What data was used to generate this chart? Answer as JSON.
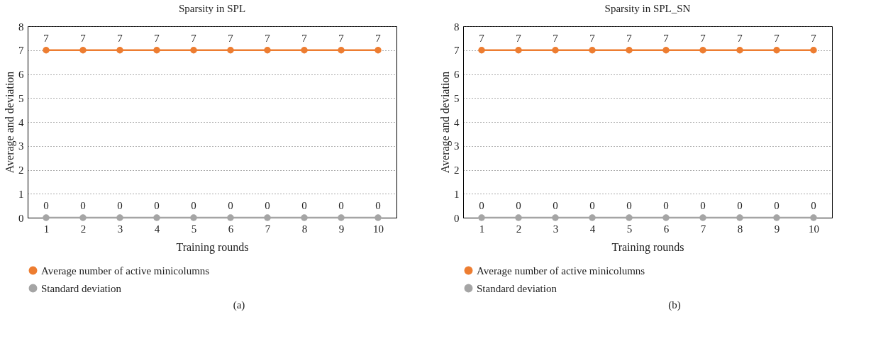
{
  "chart_data": [
    {
      "type": "line",
      "title": "Sparsity in SPL",
      "xlabel": "Training rounds",
      "ylabel": "Average and deviation",
      "categories": [
        "1",
        "2",
        "3",
        "4",
        "5",
        "6",
        "7",
        "8",
        "9",
        "10"
      ],
      "series": [
        {
          "name": "Average number of active minicolumns",
          "color": "#ed7d31",
          "values": [
            7,
            7,
            7,
            7,
            7,
            7,
            7,
            7,
            7,
            7
          ]
        },
        {
          "name": "Standard deviation",
          "color": "#a5a5a5",
          "values": [
            0,
            0,
            0,
            0,
            0,
            0,
            0,
            0,
            0,
            0
          ]
        }
      ],
      "ylim": [
        0,
        8
      ],
      "yticks": [
        0,
        1,
        2,
        3,
        4,
        5,
        6,
        7,
        8
      ],
      "grid": "y",
      "legend": "bottom",
      "marker": "circle",
      "data_labels": true,
      "annotations": [
        "(a)"
      ]
    },
    {
      "type": "line",
      "title": "Sparsity in SPL_SN",
      "xlabel": "Training rounds",
      "ylabel": "Average and deviation",
      "categories": [
        "1",
        "2",
        "3",
        "4",
        "5",
        "6",
        "7",
        "8",
        "9",
        "10"
      ],
      "series": [
        {
          "name": "Average number of active minicolumns",
          "color": "#ed7d31",
          "values": [
            7,
            7,
            7,
            7,
            7,
            7,
            7,
            7,
            7,
            7
          ]
        },
        {
          "name": "Standard deviation",
          "color": "#a5a5a5",
          "values": [
            0,
            0,
            0,
            0,
            0,
            0,
            0,
            0,
            0,
            0
          ]
        }
      ],
      "ylim": [
        0,
        8
      ],
      "yticks": [
        0,
        1,
        2,
        3,
        4,
        5,
        6,
        7,
        8
      ],
      "grid": "y",
      "legend": "bottom",
      "marker": "circle",
      "data_labels": true,
      "annotations": [
        "(b)"
      ]
    }
  ]
}
